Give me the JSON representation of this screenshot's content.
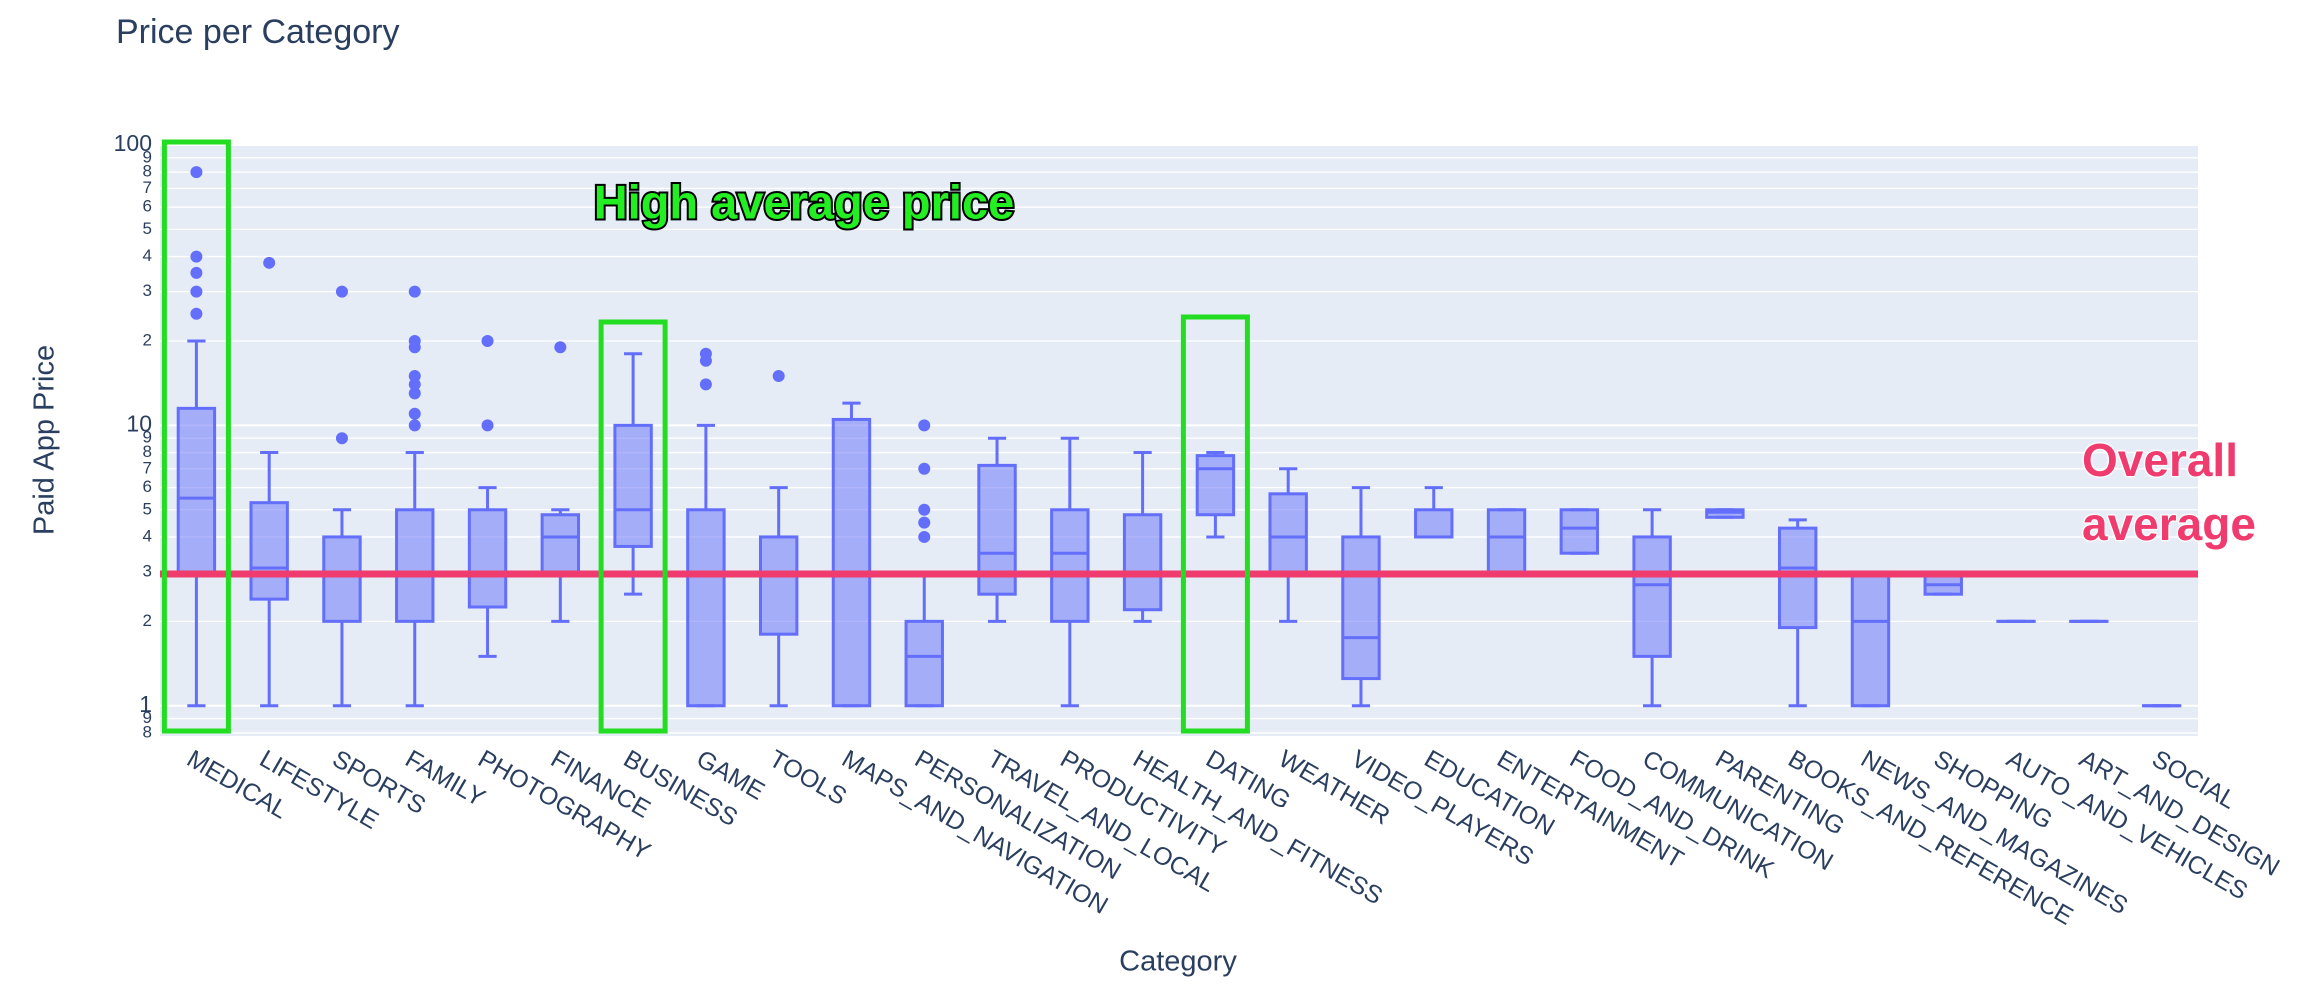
{
  "chart_data": {
    "type": "box",
    "title": "Price per Category",
    "x_label": "Category",
    "y_label": "Paid App Price",
    "log_y": true,
    "grid": true,
    "color": "#636efa",
    "ylim": [
      0.78,
      100
    ],
    "yticks": [
      {
        "value": 0.8,
        "label": "8"
      },
      {
        "value": 0.9,
        "label": "9"
      },
      1,
      2,
      3,
      4,
      5,
      6,
      7,
      8,
      9,
      10,
      {
        "value": 20,
        "label": "2"
      },
      {
        "value": 30,
        "label": "3"
      },
      {
        "value": 40,
        "label": "4"
      },
      {
        "value": 50,
        "label": "5"
      },
      {
        "value": 60,
        "label": "6"
      },
      {
        "value": 70,
        "label": "7"
      },
      {
        "value": 80,
        "label": "8"
      },
      {
        "value": 90,
        "label": "9"
      },
      100
    ],
    "categories": [
      "MEDICAL",
      "LIFESTYLE",
      "SPORTS",
      "FAMILY",
      "PHOTOGRAPHY",
      "FINANCE",
      "BUSINESS",
      "GAME",
      "TOOLS",
      "MAPS_AND_NAVIGATION",
      "PERSONALIZATION",
      "TRAVEL_AND_LOCAL",
      "PRODUCTIVITY",
      "HEALTH_AND_FITNESS",
      "DATING",
      "WEATHER",
      "VIDEO_PLAYERS",
      "EDUCATION",
      "ENTERTAINMENT",
      "FOOD_AND_DRINK",
      "COMMUNICATION",
      "PARENTING",
      "BOOKS_AND_REFERENCE",
      "NEWS_AND_MAGAZINES",
      "SHOPPING",
      "AUTO_AND_VEHICLES",
      "ART_AND_DESIGN",
      "SOCIAL"
    ],
    "boxes": [
      {
        "min": 1,
        "q1": 3,
        "median": 5.5,
        "q3": 11.5,
        "max": 20,
        "outliers": [
          25,
          30,
          35,
          40,
          80
        ]
      },
      {
        "min": 1,
        "q1": 2.4,
        "median": 3.1,
        "q3": 5.3,
        "max": 8,
        "outliers": [
          38
        ]
      },
      {
        "min": 1,
        "q1": 2,
        "median": 3,
        "q3": 4,
        "max": 5,
        "outliers": [
          9,
          30
        ]
      },
      {
        "min": 1,
        "q1": 2,
        "median": 3,
        "q3": 5,
        "max": 8,
        "outliers": [
          10,
          11,
          13,
          14,
          15,
          19,
          20,
          30
        ]
      },
      {
        "min": 1.5,
        "q1": 2.25,
        "median": 3,
        "q3": 5,
        "max": 6,
        "outliers": [
          10,
          20
        ]
      },
      {
        "min": 2,
        "q1": 3,
        "median": 4,
        "q3": 4.8,
        "max": 5,
        "outliers": [
          19
        ]
      },
      {
        "min": 2.5,
        "q1": 3.7,
        "median": 5,
        "q3": 10,
        "max": 18,
        "outliers": []
      },
      {
        "min": 1,
        "q1": 1,
        "median": 3,
        "q3": 5,
        "max": 10,
        "outliers": [
          14,
          17,
          18
        ]
      },
      {
        "min": 1,
        "q1": 1.8,
        "median": 3,
        "q3": 4,
        "max": 6,
        "outliers": [
          15
        ]
      },
      {
        "min": 1,
        "q1": 1,
        "median": 3,
        "q3": 10.5,
        "max": 12,
        "outliers": []
      },
      {
        "min": 1,
        "q1": 1,
        "median": 1.5,
        "q3": 2,
        "max": 3,
        "outliers": [
          4,
          4.5,
          5,
          7,
          10
        ]
      },
      {
        "min": 2,
        "q1": 2.5,
        "median": 3.5,
        "q3": 7.2,
        "max": 9,
        "outliers": []
      },
      {
        "min": 1,
        "q1": 2,
        "median": 3.5,
        "q3": 5,
        "max": 9,
        "outliers": []
      },
      {
        "min": 2,
        "q1": 2.2,
        "median": 3,
        "q3": 4.8,
        "max": 8,
        "outliers": []
      },
      {
        "min": 4,
        "q1": 4.8,
        "median": 7,
        "q3": 7.8,
        "max": 8,
        "outliers": []
      },
      {
        "min": 2,
        "q1": 3,
        "median": 4,
        "q3": 5.7,
        "max": 7,
        "outliers": []
      },
      {
        "min": 1,
        "q1": 1.25,
        "median": 1.75,
        "q3": 4,
        "max": 6,
        "outliers": []
      },
      {
        "min": 4,
        "q1": 4,
        "median": 4,
        "q3": 5,
        "max": 6,
        "outliers": []
      },
      {
        "min": 3,
        "q1": 3,
        "median": 4,
        "q3": 5,
        "max": 5,
        "outliers": []
      },
      {
        "min": 3.5,
        "q1": 3.5,
        "median": 4.3,
        "q3": 5,
        "max": 5,
        "outliers": []
      },
      {
        "min": 1,
        "q1": 1.5,
        "median": 2.7,
        "q3": 4,
        "max": 5,
        "outliers": []
      },
      {
        "min": 4.7,
        "q1": 4.7,
        "median": 4.9,
        "q3": 5,
        "max": 5,
        "outliers": []
      },
      {
        "min": 1,
        "q1": 1.9,
        "median": 3.1,
        "q3": 4.3,
        "max": 4.6,
        "outliers": []
      },
      {
        "min": 1,
        "q1": 1,
        "median": 2,
        "q3": 3,
        "max": 3,
        "outliers": []
      },
      {
        "min": 2.5,
        "q1": 2.5,
        "median": 2.7,
        "q3": 3,
        "max": 3,
        "outliers": []
      },
      {
        "min": 2,
        "q1": 2,
        "median": 2,
        "q3": 2,
        "max": 2,
        "outliers": []
      },
      {
        "min": 2,
        "q1": 2,
        "median": 2,
        "q3": 2,
        "max": 2,
        "outliers": []
      },
      {
        "min": 1,
        "q1": 1,
        "median": 1,
        "q3": 1,
        "max": 1,
        "outliers": []
      }
    ],
    "average_line": {
      "value": 2.95,
      "color": "#ef3b6e"
    },
    "annotations": [
      "High average price",
      "Overall average"
    ]
  }
}
